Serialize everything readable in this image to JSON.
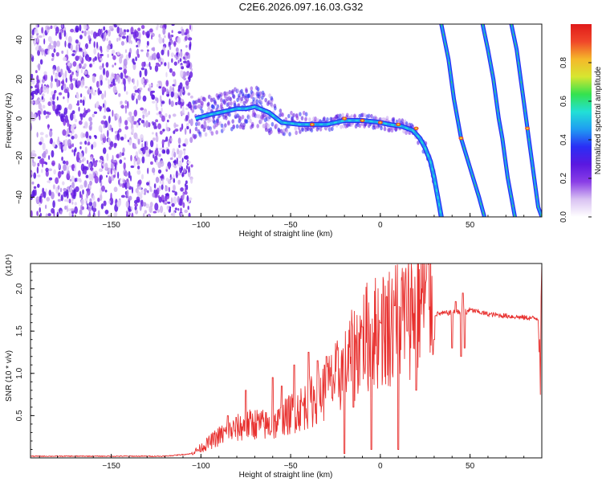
{
  "title": "C2E6.2026.097.16.03.G32",
  "colors": {
    "axis": "#111111",
    "snr_line": "#e8312f",
    "background": "#ffffff",
    "colormap": [
      "#ffffff",
      "#d9c2f2",
      "#8a3ee6",
      "#5a18e0",
      "#2a2ef5",
      "#1f9cf2",
      "#22e0d6",
      "#34e24e",
      "#d7e630",
      "#f5b82a",
      "#f0472a",
      "#e01a1a"
    ]
  },
  "chart_data": [
    {
      "name": "spectrogram",
      "type": "heatmap",
      "xlabel": "Height of straight line (km)",
      "ylabel": "Frequency (Hz)",
      "xlim": [
        -195,
        90
      ],
      "ylim": [
        -50,
        48
      ],
      "xticks": [
        -150,
        -100,
        -50,
        0,
        50
      ],
      "yticks": [
        -40,
        -20,
        0,
        20,
        40
      ],
      "colorbar": {
        "label": "Normalized spectral amplitude",
        "range": [
          0.0,
          1.0
        ],
        "ticks": [
          "0.0",
          "0.2",
          "0.4",
          "0.6",
          "0.8"
        ]
      },
      "traces": [
        {
          "name": "main-signal",
          "points": [
            [
              -103,
              0
            ],
            [
              -95,
              2
            ],
            [
              -85,
              4
            ],
            [
              -80,
              5
            ],
            [
              -75,
              5
            ],
            [
              -70,
              6
            ],
            [
              -62,
              3
            ],
            [
              -55,
              -2
            ],
            [
              -45,
              -3
            ],
            [
              -30,
              -3
            ],
            [
              -20,
              -1
            ],
            [
              -10,
              -1
            ],
            [
              0,
              -2
            ],
            [
              5,
              -3
            ],
            [
              12,
              -4
            ],
            [
              18,
              -6
            ],
            [
              22,
              -10
            ],
            [
              25,
              -15
            ],
            [
              28,
              -22
            ],
            [
              30,
              -30
            ],
            [
              32,
              -40
            ],
            [
              34,
              -50
            ]
          ]
        },
        {
          "name": "alias-1",
          "points": [
            [
              34,
              48
            ],
            [
              38,
              30
            ],
            [
              41,
              10
            ],
            [
              45,
              -10
            ],
            [
              50,
              -25
            ],
            [
              55,
              -40
            ],
            [
              58,
              -50
            ]
          ]
        },
        {
          "name": "alias-2",
          "points": [
            [
              57,
              48
            ],
            [
              60,
              35
            ],
            [
              63,
              20
            ],
            [
              66,
              0
            ],
            [
              68,
              -10
            ],
            [
              71,
              -30
            ],
            [
              75,
              -50
            ]
          ]
        },
        {
          "name": "alias-3",
          "points": [
            [
              73,
              48
            ],
            [
              76,
              35
            ],
            [
              79,
              15
            ],
            [
              82,
              -5
            ],
            [
              85,
              -25
            ],
            [
              88,
              -45
            ],
            [
              90,
              -50
            ]
          ]
        }
      ],
      "noise_region": {
        "x": [
          -195,
          -105
        ],
        "y": [
          -50,
          48
        ]
      },
      "hot_spots": [
        [
          -38,
          -3
        ],
        [
          -20,
          0
        ],
        [
          -10,
          -1
        ],
        [
          0,
          -2
        ],
        [
          10,
          -3
        ],
        [
          20,
          -5
        ],
        [
          45,
          -10
        ],
        [
          82,
          -5
        ]
      ]
    },
    {
      "name": "snr",
      "type": "line",
      "xlabel": "Height of straight line (km)",
      "ylabel": "SNR (10 * v/v)",
      "yscale_label": "(x10⁴)",
      "xlim": [
        -195,
        90
      ],
      "ylim": [
        0,
        2.3
      ],
      "xticks": [
        -150,
        -100,
        -50,
        0,
        50
      ],
      "yticks": [
        0.5,
        1.0,
        1.5,
        2.0
      ],
      "envelope": [
        [
          -195,
          0.02
        ],
        [
          -120,
          0.02
        ],
        [
          -105,
          0.05
        ],
        [
          -100,
          0.1
        ],
        [
          -90,
          0.22
        ],
        [
          -80,
          0.3
        ],
        [
          -70,
          0.35
        ],
        [
          -60,
          0.32
        ],
        [
          -50,
          0.45
        ],
        [
          -40,
          0.55
        ],
        [
          -30,
          0.7
        ],
        [
          -20,
          0.9
        ],
        [
          -10,
          1.2
        ],
        [
          0,
          1.3
        ],
        [
          10,
          1.4
        ],
        [
          20,
          1.55
        ],
        [
          25,
          1.65
        ],
        [
          30,
          1.7
        ],
        [
          40,
          1.72
        ],
        [
          50,
          1.75
        ],
        [
          60,
          1.7
        ],
        [
          70,
          1.68
        ],
        [
          80,
          1.66
        ],
        [
          88,
          1.65
        ],
        [
          89,
          0.9
        ],
        [
          90,
          2.3
        ]
      ],
      "spikes": [
        [
          -85,
          0.5
        ],
        [
          -75,
          0.8
        ],
        [
          -60,
          0.95
        ],
        [
          -55,
          0.85
        ],
        [
          -48,
          1.1
        ],
        [
          -40,
          1.25
        ],
        [
          -35,
          1.15
        ],
        [
          -30,
          1.2
        ],
        [
          -15,
          0.6
        ],
        [
          -10,
          1.55
        ],
        [
          0,
          1.6
        ],
        [
          8,
          1.8
        ],
        [
          10,
          0.15
        ],
        [
          15,
          1.5
        ],
        [
          30,
          1.4
        ],
        [
          42,
          1.85
        ],
        [
          46,
          1.95
        ],
        [
          48,
          1.7
        ]
      ],
      "dips": [
        [
          -20,
          0.05
        ],
        [
          -5,
          0.1
        ],
        [
          10,
          0.1
        ],
        [
          20,
          0.8
        ],
        [
          40,
          1.3
        ],
        [
          45,
          1.2
        ],
        [
          47,
          1.3
        ]
      ]
    }
  ]
}
